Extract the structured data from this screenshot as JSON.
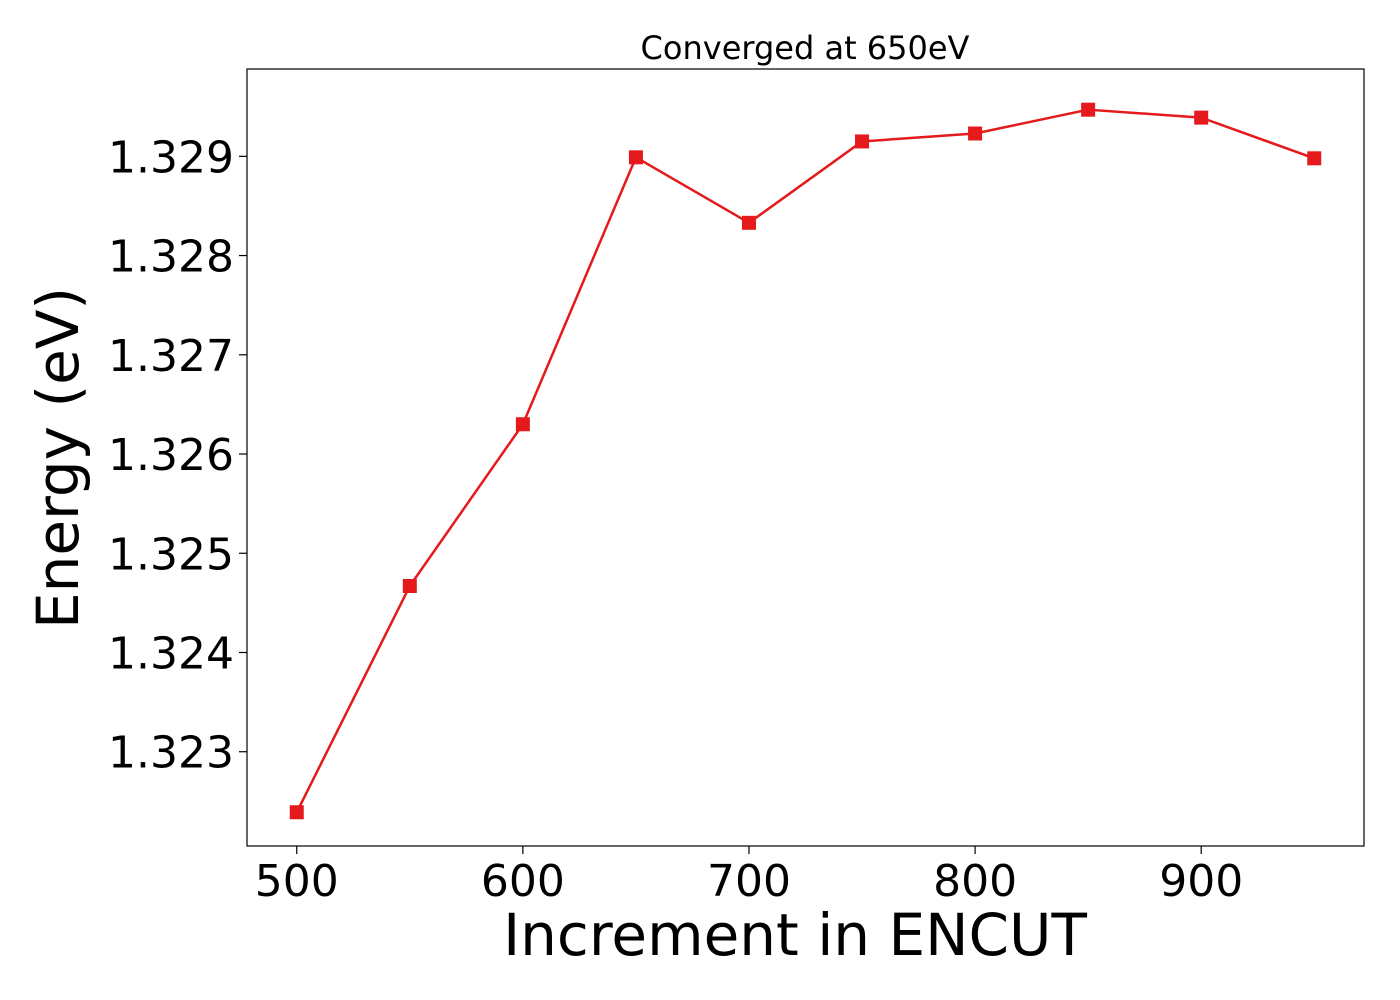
{
  "chart_data": {
    "type": "line",
    "title": "Converged at 650eV",
    "xlabel": "Increment in ENCUT",
    "ylabel": "Energy (eV)",
    "xlim": [
      478,
      972
    ],
    "ylim": [
      1.32205,
      1.32988
    ],
    "xticks": [
      500,
      600,
      700,
      800,
      900
    ],
    "xtick_labels": [
      "500",
      "600",
      "700",
      "800",
      "900"
    ],
    "yticks": [
      1.323,
      1.324,
      1.325,
      1.326,
      1.327,
      1.328,
      1.329
    ],
    "ytick_labels": [
      "1.323",
      "1.324",
      "1.325",
      "1.326",
      "1.327",
      "1.328",
      "1.329"
    ],
    "grid": false,
    "legend": "none",
    "series": [
      {
        "color": "#e41a1c",
        "marker": "square",
        "x": [
          500,
          550,
          600,
          650,
          700,
          750,
          800,
          850,
          900,
          950
        ],
        "y": [
          1.32239,
          1.32467,
          1.3263,
          1.32899,
          1.32833,
          1.32915,
          1.32923,
          1.32947,
          1.32939,
          1.32898
        ]
      }
    ]
  }
}
